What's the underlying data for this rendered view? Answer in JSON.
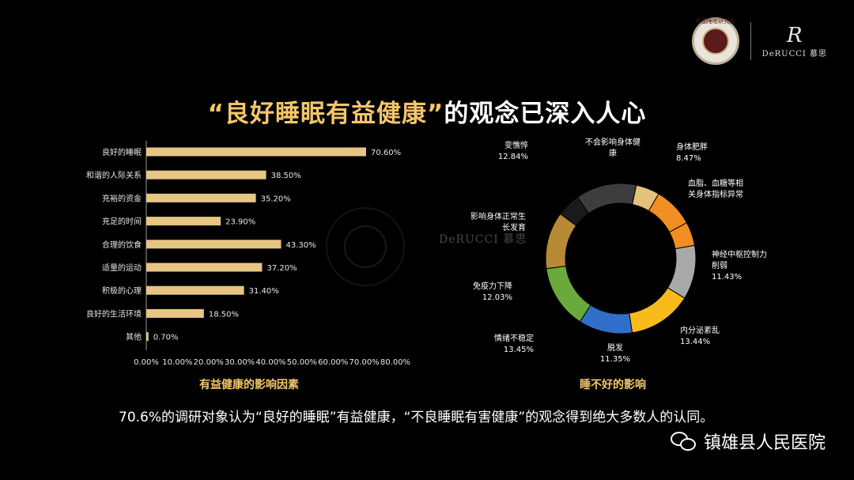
{
  "header": {
    "seal_text": "中国睡眠研究会",
    "brand_mark": "R",
    "brand_name": "DeRUCCI 慕思"
  },
  "title": {
    "highlight": "“良好睡眠有益健康”",
    "rest": "的观念已深入人心"
  },
  "watermark": {
    "brand_name": "DeRUCCI 慕思"
  },
  "chart_data": [
    {
      "type": "bar",
      "orientation": "horizontal",
      "title": "有益健康的影响因素",
      "categories": [
        "良好的睡眠",
        "和谐的人际关系",
        "充裕的资金",
        "充足的时间",
        "合理的饮食",
        "适量的运动",
        "积极的心理",
        "良好的生活环境",
        "其他"
      ],
      "values": [
        70.6,
        38.5,
        35.2,
        23.9,
        43.3,
        37.2,
        31.4,
        18.5,
        0.7
      ],
      "value_labels": [
        "70.60%",
        "38.50%",
        "35.20%",
        "23.90%",
        "43.30%",
        "37.20%",
        "31.40%",
        "18.50%",
        "0.70%"
      ],
      "xlim": [
        0,
        80
      ],
      "xticks": [
        "0.00%",
        "10.00%",
        "20.00%",
        "30.00%",
        "40.00%",
        "50.00%",
        "60.00%",
        "70.00%",
        "80.00%"
      ],
      "bar_color": "#e7c583",
      "grid": false
    },
    {
      "type": "pie",
      "style": "donut",
      "title": "睡不好的影响",
      "slices": [
        {
          "label": "不会影响身体健康",
          "value": null,
          "label_value": "",
          "color": "#e5c27b"
        },
        {
          "label": "身体肥胖",
          "value": 8.47,
          "label_value": "8.47%",
          "color": "#f28e22"
        },
        {
          "label": "血脂、血糖等相关身体指标异常",
          "value": null,
          "label_value": "",
          "color": "#f28e22"
        },
        {
          "label": "神经中枢控制力削弱",
          "value": 11.43,
          "label_value": "11.43%",
          "color": "#a9a9a9"
        },
        {
          "label": "内分泌紊乱",
          "value": 13.44,
          "label_value": "13.44%",
          "color": "#f8bb1c"
        },
        {
          "label": "脱发",
          "value": 11.35,
          "label_value": "11.35%",
          "color": "#2f6fc9"
        },
        {
          "label": "情绪不稳定",
          "value": 13.45,
          "label_value": "13.45%",
          "color": "#6aaa3c"
        },
        {
          "label": "免疫力下降",
          "value": 12.03,
          "label_value": "12.03%",
          "color": "#b98a35"
        },
        {
          "label": "影响身体正常生长发育",
          "value": null,
          "label_value": "",
          "color": "#1a1a1a"
        },
        {
          "label": "变憔悴",
          "value": 12.84,
          "label_value": "12.84%",
          "color": "#3d3d3d"
        }
      ],
      "label_color": "#ffffff"
    }
  ],
  "summary": "70.6%的调研对象认为“良好的睡眠”有益健康，“不良睡眠有害健康”的观念得到绝大多数人的认同。",
  "footer": {
    "account_name": "镇雄县人民医院",
    "icon": "wechat-icon"
  }
}
